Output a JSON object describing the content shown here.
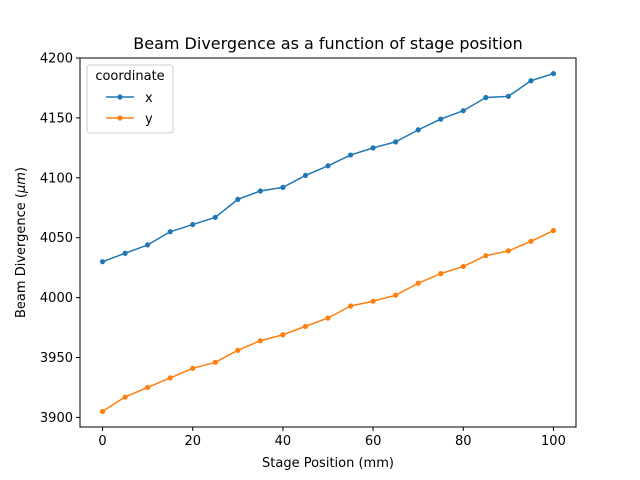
{
  "chart_data": {
    "type": "line",
    "title": "Beam Divergence as a function of stage position",
    "xlabel": "Stage Position (mm)",
    "ylabel_prefix": "Beam Divergence (",
    "ylabel_unit": "μm",
    "ylabel_suffix": ")",
    "xlim": [
      -5,
      105
    ],
    "ylim": [
      3892,
      4200
    ],
    "x_ticks": [
      0,
      20,
      40,
      60,
      80,
      100
    ],
    "y_ticks": [
      3900,
      3950,
      4000,
      4050,
      4100,
      4150,
      4200
    ],
    "grid": false,
    "legend": {
      "title": "coordinate",
      "position": "top-left"
    },
    "x": [
      0,
      5,
      10,
      15,
      20,
      25,
      30,
      35,
      40,
      45,
      50,
      55,
      60,
      65,
      70,
      75,
      80,
      85,
      90,
      95,
      100
    ],
    "series": [
      {
        "name": "x",
        "color": "#1f77b4",
        "values": [
          4030,
          4037,
          4044,
          4055,
          4061,
          4067,
          4082,
          4089,
          4092,
          4102,
          4110,
          4119,
          4125,
          4130,
          4140,
          4149,
          4156,
          4167,
          4168,
          4181,
          4187
        ]
      },
      {
        "name": "y",
        "color": "#ff7f0e",
        "values": [
          3905,
          3917,
          3925,
          3933,
          3941,
          3946,
          3956,
          3964,
          3969,
          3976,
          3983,
          3993,
          3997,
          4002,
          4012,
          4020,
          4026,
          4035,
          4039,
          4047,
          4056
        ]
      }
    ]
  }
}
